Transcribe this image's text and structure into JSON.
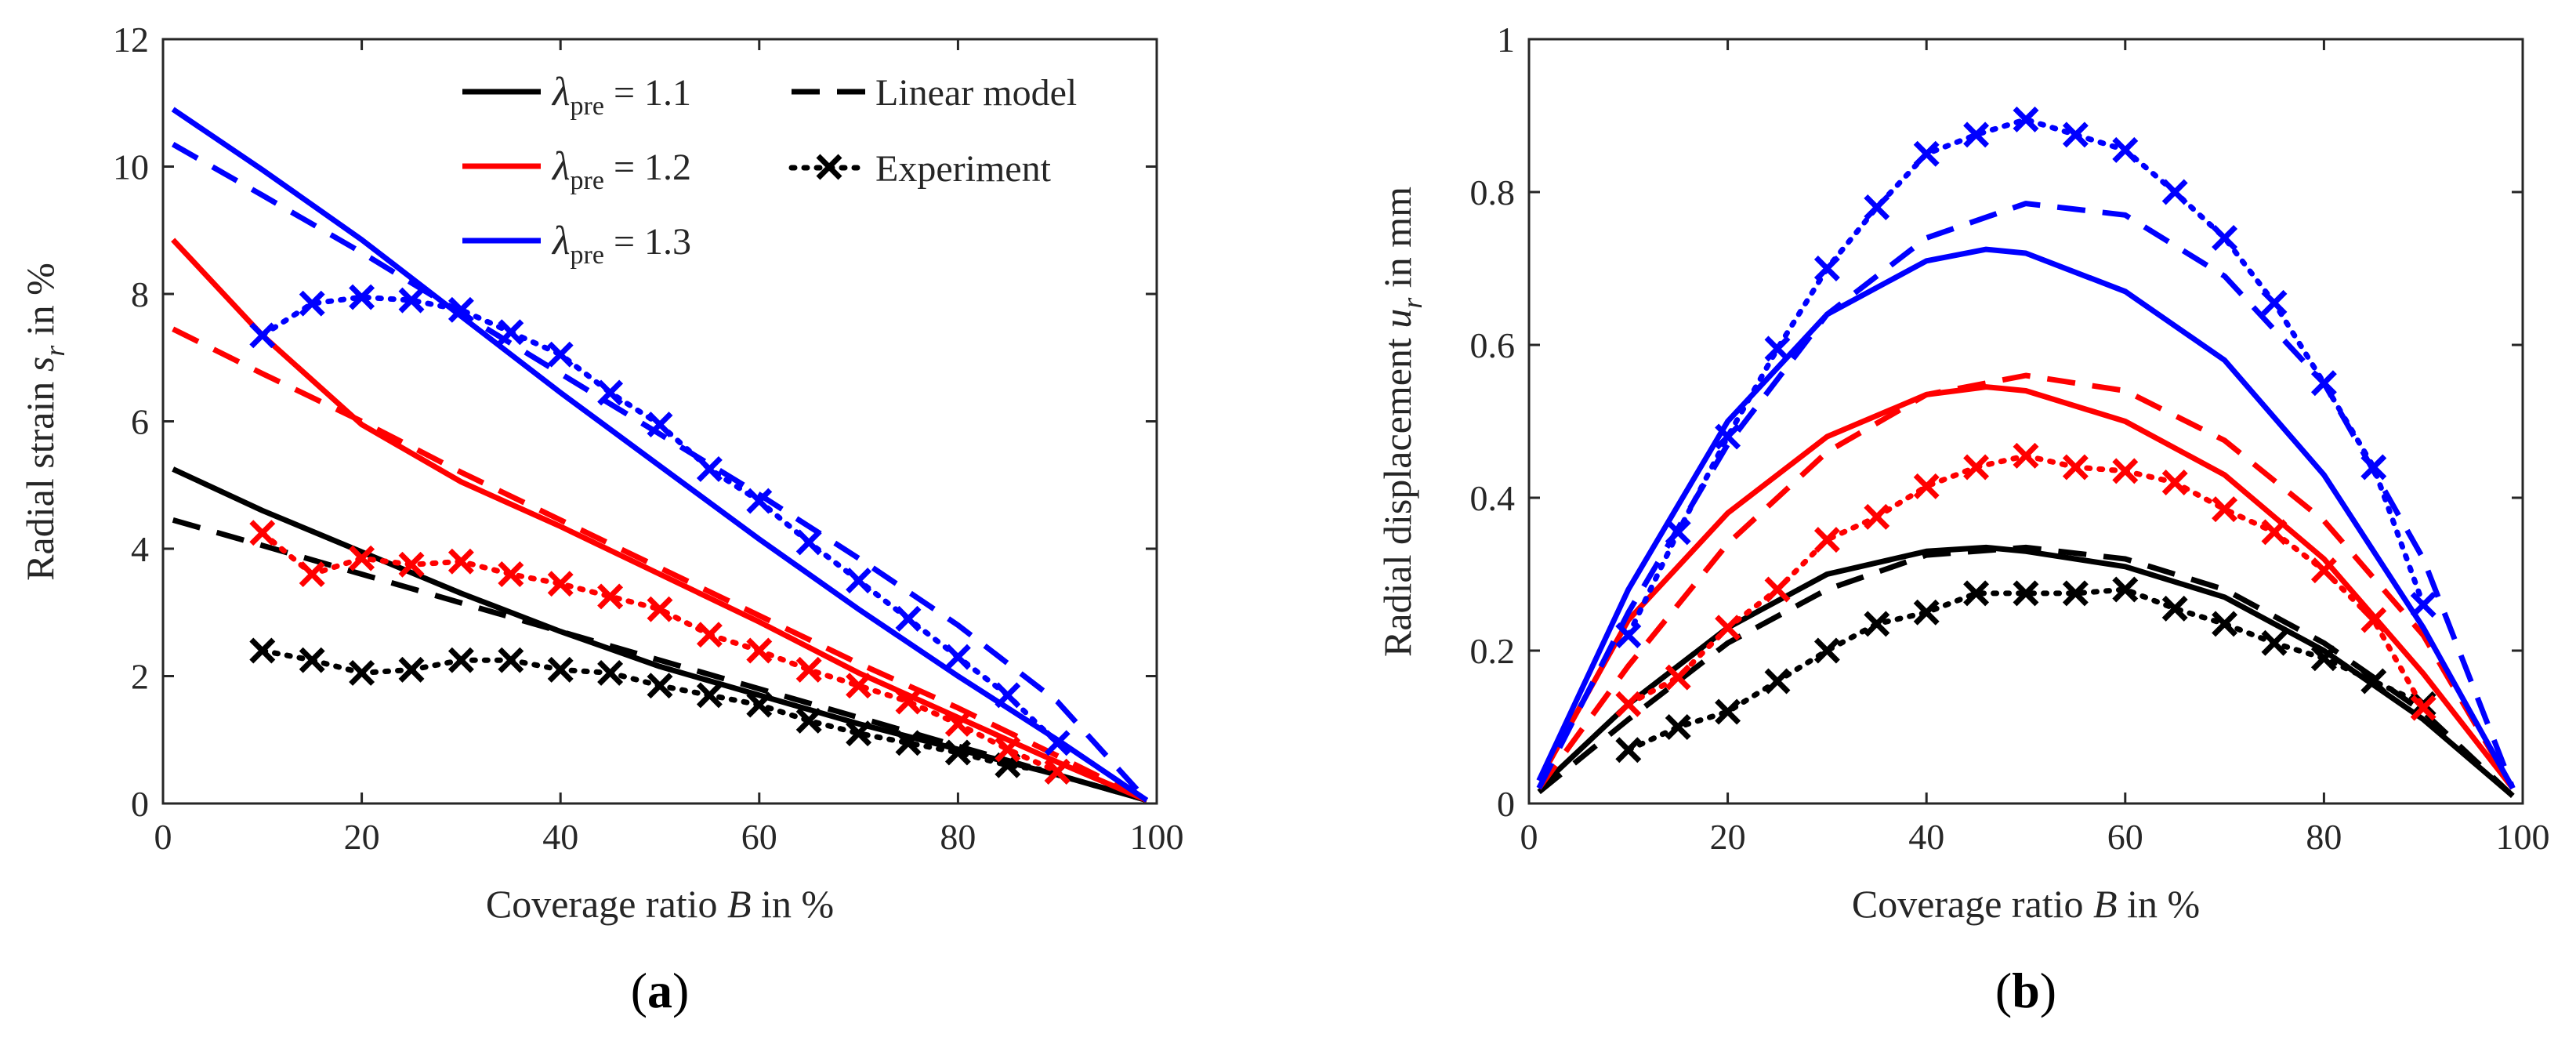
{
  "colors": {
    "black": "#000000",
    "red": "#ff0000",
    "blue": "#0000ff",
    "axis": "#262626"
  },
  "legend": {
    "entries": [
      {
        "symbol": "λ",
        "subscript": "pre",
        "rest": " = 1.1",
        "color": "#000000",
        "style": "solid"
      },
      {
        "symbol": "λ",
        "subscript": "pre",
        "rest": " = 1.2",
        "color": "#ff0000",
        "style": "solid"
      },
      {
        "symbol": "λ",
        "subscript": "pre",
        "rest": " = 1.3",
        "color": "#0000ff",
        "style": "solid"
      },
      {
        "label": "Linear model",
        "color": "#000000",
        "style": "dashed"
      },
      {
        "label": "Experiment",
        "color": "#000000",
        "style": "dotted-x"
      }
    ]
  },
  "chart_data": [
    {
      "id": "a",
      "type": "line",
      "caption": "a",
      "xlabel_main": "Coverage ratio ",
      "xlabel_var": "B",
      "xlabel_unit": " in %",
      "ylabel_main": "Radial strain ",
      "ylabel_var": "s",
      "ylabel_sub": "r",
      "ylabel_unit": " in %",
      "xlim": [
        0,
        100
      ],
      "ylim": [
        0,
        12
      ],
      "xticks": [
        0,
        20,
        40,
        60,
        80,
        100
      ],
      "yticks": [
        0,
        2,
        4,
        6,
        8,
        10,
        12
      ],
      "ytick_labels": [
        "0",
        "2",
        "4",
        "6",
        "8",
        "10",
        "12"
      ],
      "series": [
        {
          "name": "λpre = 1.1 model",
          "color": "#000000",
          "style": "solid",
          "x": [
            1,
            10,
            20,
            30,
            40,
            50,
            60,
            70,
            80,
            90,
            99
          ],
          "y": [
            5.25,
            4.6,
            3.95,
            3.3,
            2.7,
            2.15,
            1.7,
            1.25,
            0.85,
            0.45,
            0.05
          ]
        },
        {
          "name": "λpre = 1.1 linear model",
          "color": "#000000",
          "style": "dashed",
          "x": [
            1,
            10,
            20,
            30,
            40,
            50,
            60,
            70,
            80,
            90,
            99
          ],
          "y": [
            4.45,
            4.05,
            3.6,
            3.15,
            2.7,
            2.25,
            1.8,
            1.35,
            0.9,
            0.45,
            0.05
          ]
        },
        {
          "name": "λpre = 1.1 experiment",
          "color": "#000000",
          "style": "dotted-x",
          "x": [
            10,
            15,
            20,
            25,
            30,
            35,
            40,
            45,
            50,
            55,
            60,
            65,
            70,
            75,
            80,
            85,
            90
          ],
          "y": [
            2.4,
            2.25,
            2.05,
            2.1,
            2.25,
            2.25,
            2.1,
            2.05,
            1.85,
            1.7,
            1.55,
            1.3,
            1.1,
            0.95,
            0.8,
            0.6,
            0.5
          ]
        },
        {
          "name": "λpre = 1.2 model",
          "color": "#ff0000",
          "style": "solid",
          "x": [
            1,
            10,
            20,
            30,
            40,
            50,
            60,
            70,
            80,
            90,
            99
          ],
          "y": [
            8.85,
            7.35,
            5.95,
            5.05,
            4.35,
            3.6,
            2.85,
            2.05,
            1.35,
            0.65,
            0.05
          ]
        },
        {
          "name": "λpre = 1.2 linear model",
          "color": "#ff0000",
          "style": "dashed",
          "x": [
            1,
            10,
            20,
            30,
            40,
            50,
            60,
            70,
            80,
            90,
            99
          ],
          "y": [
            7.45,
            6.75,
            6.0,
            5.2,
            4.45,
            3.7,
            2.95,
            2.2,
            1.5,
            0.75,
            0.05
          ]
        },
        {
          "name": "λpre = 1.2 experiment",
          "color": "#ff0000",
          "style": "dotted-x",
          "x": [
            10,
            15,
            20,
            25,
            30,
            35,
            40,
            45,
            50,
            55,
            60,
            65,
            70,
            75,
            80,
            85,
            90
          ],
          "y": [
            4.25,
            3.6,
            3.85,
            3.75,
            3.8,
            3.6,
            3.45,
            3.25,
            3.05,
            2.65,
            2.4,
            2.1,
            1.85,
            1.6,
            1.25,
            0.85,
            0.5
          ]
        },
        {
          "name": "λpre = 1.3 model",
          "color": "#0000ff",
          "style": "solid",
          "x": [
            1,
            10,
            20,
            30,
            40,
            50,
            60,
            70,
            80,
            90,
            99
          ],
          "y": [
            10.9,
            9.95,
            8.85,
            7.65,
            6.45,
            5.3,
            4.15,
            3.05,
            2.0,
            1.0,
            0.05
          ]
        },
        {
          "name": "λpre = 1.3 linear model",
          "color": "#0000ff",
          "style": "dashed",
          "x": [
            1,
            10,
            20,
            30,
            40,
            50,
            60,
            70,
            80,
            90,
            99
          ],
          "y": [
            10.35,
            9.55,
            8.65,
            7.7,
            6.75,
            5.8,
            4.85,
            3.85,
            2.8,
            1.6,
            0.05
          ]
        },
        {
          "name": "λpre = 1.3 experiment",
          "color": "#0000ff",
          "style": "dotted-x",
          "x": [
            10,
            15,
            20,
            25,
            30,
            35,
            40,
            45,
            50,
            55,
            60,
            65,
            70,
            75,
            80,
            85,
            90
          ],
          "y": [
            7.35,
            7.85,
            7.95,
            7.9,
            7.75,
            7.4,
            7.05,
            6.45,
            5.95,
            5.25,
            4.75,
            4.1,
            3.5,
            2.9,
            2.3,
            1.7,
            0.95
          ]
        }
      ]
    },
    {
      "id": "b",
      "type": "line",
      "caption": "b",
      "xlabel_main": "Coverage ratio ",
      "xlabel_var": "B",
      "xlabel_unit": " in %",
      "ylabel_main": "Radial displacement ",
      "ylabel_var": "u",
      "ylabel_sub": "r",
      "ylabel_unit": " in mm",
      "xlim": [
        0,
        100
      ],
      "ylim": [
        0,
        1
      ],
      "xticks": [
        0,
        20,
        40,
        60,
        80,
        100
      ],
      "yticks": [
        0,
        0.2,
        0.4,
        0.6,
        0.8,
        1
      ],
      "ytick_labels": [
        "0",
        "0.2",
        "0.4",
        "0.6",
        "0.8",
        "1"
      ],
      "series": [
        {
          "name": "λpre = 1.1 model",
          "color": "#000000",
          "style": "solid",
          "x": [
            1,
            10,
            20,
            30,
            40,
            46,
            50,
            60,
            70,
            80,
            90,
            99
          ],
          "y": [
            0.02,
            0.13,
            0.23,
            0.3,
            0.33,
            0.335,
            0.33,
            0.31,
            0.27,
            0.2,
            0.11,
            0.01
          ]
        },
        {
          "name": "λpre = 1.1 linear model",
          "color": "#000000",
          "style": "dashed",
          "x": [
            1,
            10,
            20,
            30,
            40,
            50,
            60,
            70,
            80,
            90,
            99
          ],
          "y": [
            0.015,
            0.11,
            0.21,
            0.28,
            0.325,
            0.335,
            0.32,
            0.28,
            0.21,
            0.12,
            0.01
          ]
        },
        {
          "name": "λpre = 1.1 experiment",
          "color": "#000000",
          "style": "dotted-x",
          "x": [
            10,
            15,
            20,
            25,
            30,
            35,
            40,
            45,
            50,
            55,
            60,
            65,
            70,
            75,
            80,
            85,
            90
          ],
          "y": [
            0.07,
            0.1,
            0.12,
            0.16,
            0.2,
            0.235,
            0.25,
            0.275,
            0.275,
            0.275,
            0.28,
            0.255,
            0.235,
            0.21,
            0.19,
            0.16,
            0.13
          ]
        },
        {
          "name": "λpre = 1.2 model",
          "color": "#ff0000",
          "style": "solid",
          "x": [
            1,
            10,
            20,
            30,
            40,
            46,
            50,
            60,
            70,
            80,
            90,
            99
          ],
          "y": [
            0.03,
            0.24,
            0.38,
            0.48,
            0.535,
            0.545,
            0.54,
            0.5,
            0.43,
            0.32,
            0.17,
            0.02
          ]
        },
        {
          "name": "λpre = 1.2 linear model",
          "color": "#ff0000",
          "style": "dashed",
          "x": [
            1,
            10,
            20,
            30,
            40,
            50,
            60,
            70,
            80,
            90,
            99
          ],
          "y": [
            0.02,
            0.18,
            0.34,
            0.46,
            0.535,
            0.56,
            0.54,
            0.475,
            0.37,
            0.22,
            0.02
          ]
        },
        {
          "name": "λpre = 1.2 experiment",
          "color": "#ff0000",
          "style": "dotted-x",
          "x": [
            10,
            15,
            20,
            25,
            30,
            35,
            40,
            45,
            50,
            55,
            60,
            65,
            70,
            75,
            80,
            85,
            90
          ],
          "y": [
            0.13,
            0.165,
            0.23,
            0.28,
            0.345,
            0.375,
            0.415,
            0.44,
            0.455,
            0.44,
            0.435,
            0.42,
            0.385,
            0.355,
            0.305,
            0.24,
            0.125
          ]
        },
        {
          "name": "λpre = 1.3 model",
          "color": "#0000ff",
          "style": "solid",
          "x": [
            1,
            10,
            20,
            30,
            40,
            46,
            50,
            60,
            70,
            80,
            90,
            99
          ],
          "y": [
            0.03,
            0.28,
            0.5,
            0.64,
            0.71,
            0.725,
            0.72,
            0.67,
            0.58,
            0.43,
            0.23,
            0.02
          ]
        },
        {
          "name": "λpre = 1.3 linear model",
          "color": "#0000ff",
          "style": "dashed",
          "x": [
            1,
            10,
            20,
            30,
            40,
            50,
            60,
            70,
            80,
            90,
            99
          ],
          "y": [
            0.02,
            0.25,
            0.47,
            0.64,
            0.74,
            0.785,
            0.77,
            0.69,
            0.55,
            0.32,
            0.02
          ]
        },
        {
          "name": "λpre = 1.3 experiment",
          "color": "#0000ff",
          "style": "dotted-x",
          "x": [
            10,
            15,
            20,
            25,
            30,
            35,
            40,
            45,
            50,
            55,
            60,
            65,
            70,
            75,
            80,
            85,
            90
          ],
          "y": [
            0.22,
            0.355,
            0.48,
            0.595,
            0.7,
            0.78,
            0.85,
            0.875,
            0.895,
            0.875,
            0.855,
            0.8,
            0.74,
            0.655,
            0.55,
            0.44,
            0.26
          ]
        }
      ]
    }
  ]
}
